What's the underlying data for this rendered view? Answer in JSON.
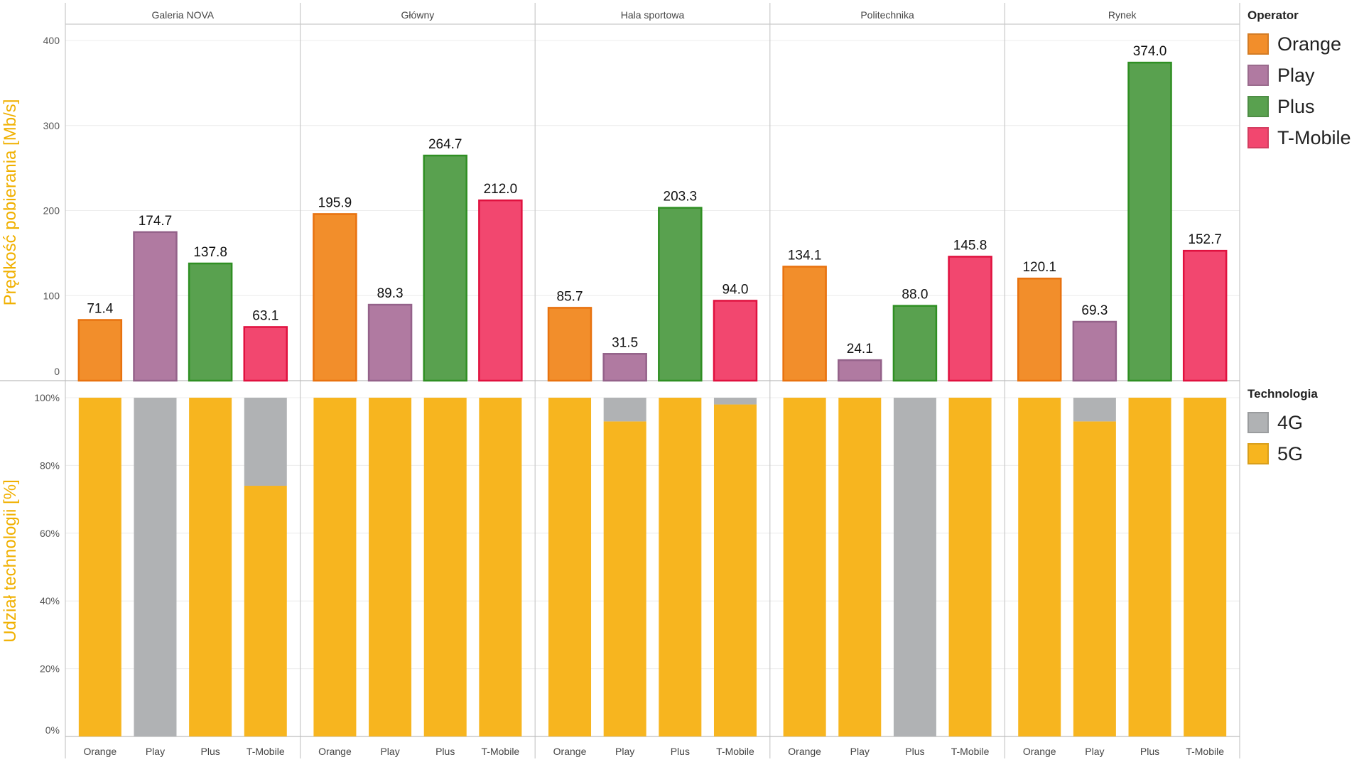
{
  "chart_data": {
    "type": "bar",
    "locations": [
      "Galeria NOVA",
      "Główny",
      "Hala sportowa",
      "Politechnika",
      "Rynek"
    ],
    "operators": [
      "Orange",
      "Play",
      "Plus",
      "T-Mobile"
    ],
    "top": {
      "ylabel": "Prędkość pobierania [Mb/s]",
      "ylim": [
        0,
        420
      ],
      "ticks": [
        "0",
        "100",
        "200",
        "300",
        "400"
      ],
      "series": [
        {
          "name": "Orange",
          "values": [
            71.4,
            195.9,
            85.7,
            134.1,
            120.1
          ],
          "labels": [
            "71.4",
            "195.9",
            "85.7",
            "134.1",
            "120.1"
          ]
        },
        {
          "name": "Play",
          "values": [
            174.7,
            89.3,
            31.5,
            24.1,
            69.3
          ],
          "labels": [
            "174.7",
            "89.3",
            "31.5",
            "24.1",
            "69.3"
          ]
        },
        {
          "name": "Plus",
          "values": [
            137.8,
            264.7,
            203.3,
            88.0,
            374.0
          ],
          "labels": [
            "137.8",
            "264.7",
            "203.3",
            "88.0",
            "374.0"
          ]
        },
        {
          "name": "T-Mobile",
          "values": [
            63.1,
            212.0,
            94.0,
            145.8,
            152.7
          ],
          "labels": [
            "63.1",
            "212.0",
            "94.0",
            "145.8",
            "152.7"
          ]
        }
      ]
    },
    "bottom": {
      "type": "stacked-bar",
      "ylabel": "Udział technologii [%]",
      "ylim": [
        0,
        100
      ],
      "ticks": [
        "0%",
        "20%",
        "40%",
        "60%",
        "80%",
        "100%"
      ],
      "series": [
        {
          "name": "4G",
          "values": [
            [
              0,
              100,
              0,
              26
            ],
            [
              0,
              0,
              0,
              0
            ],
            [
              0,
              7,
              0,
              2
            ],
            [
              0,
              0,
              100,
              0
            ],
            [
              0,
              7,
              0,
              0
            ]
          ]
        },
        {
          "name": "5G",
          "values": [
            [
              100,
              0,
              100,
              74
            ],
            [
              100,
              100,
              100,
              100
            ],
            [
              100,
              93,
              100,
              98
            ],
            [
              100,
              100,
              0,
              100
            ],
            [
              100,
              93,
              100,
              100
            ]
          ]
        }
      ]
    },
    "legend_operator": {
      "title": "Operator",
      "items": [
        {
          "label": "Orange",
          "color": "#f28e2b"
        },
        {
          "label": "Play",
          "color": "#b07aa1"
        },
        {
          "label": "Plus",
          "color": "#59a14f"
        },
        {
          "label": "T-Mobile",
          "color": "#f2476f"
        }
      ]
    },
    "legend_technology": {
      "title": "Technologia",
      "items": [
        {
          "label": "4G",
          "color": "#b0b2b4"
        },
        {
          "label": "5G",
          "color": "#f7b51f"
        }
      ]
    },
    "colors": {
      "Orange": {
        "fill": "#f28e2b",
        "stroke": "#e8720f"
      },
      "Play": {
        "fill": "#b07aa1",
        "stroke": "#94628a"
      },
      "Plus": {
        "fill": "#59a14f",
        "stroke": "#2f8f23"
      },
      "T-Mobile": {
        "fill": "#f2476f",
        "stroke": "#e0113f"
      },
      "4G": {
        "fill": "#b0b2b4"
      },
      "5G": {
        "fill": "#f7b51f"
      },
      "ylabel": "#f0b000"
    },
    "grid": true,
    "legend_position": "right"
  }
}
